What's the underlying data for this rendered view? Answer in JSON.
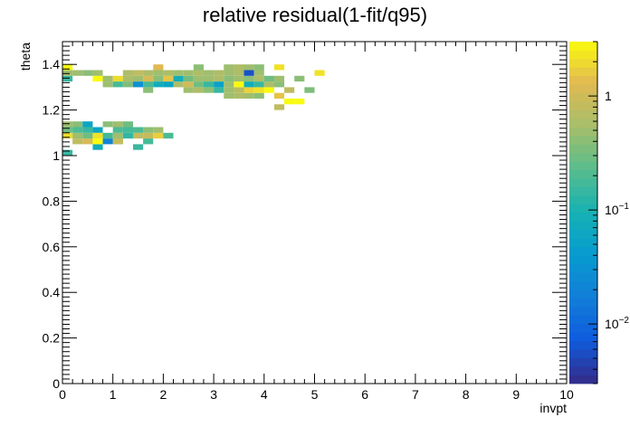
{
  "chart_data": {
    "type": "heatmap",
    "title": "relative residual(1-fit/q95)",
    "xlabel": "invpt",
    "ylabel": "theta",
    "xlim": [
      0,
      10
    ],
    "ylim": [
      0,
      1.5
    ],
    "x_ticks": [
      "0",
      "1",
      "2",
      "3",
      "4",
      "5",
      "6",
      "7",
      "8",
      "9",
      "10"
    ],
    "y_ticks": [
      "0",
      "0.2",
      "0.4",
      "0.6",
      "0.8",
      "1",
      "1.2",
      "1.4"
    ],
    "z_scale": "log",
    "z_range": [
      0.003,
      3
    ],
    "z_ticks": [
      {
        "value": 0.01,
        "base": "10",
        "exp": "−2"
      },
      {
        "value": 0.1,
        "base": "10",
        "exp": "−1"
      },
      {
        "value": 1,
        "base": "1",
        "exp": ""
      }
    ],
    "bin_size": [
      0.2,
      0.025
    ],
    "cells": [
      {
        "x": 0.0,
        "y": 1.0,
        "z": 0.15
      },
      {
        "x": 0.6,
        "y": 1.025,
        "z": 0.08
      },
      {
        "x": 1.0,
        "y": 1.05,
        "z": 0.18
      },
      {
        "x": 1.4,
        "y": 1.025,
        "z": 0.15
      },
      {
        "x": 1.6,
        "y": 1.05,
        "z": 0.18
      },
      {
        "x": 0.2,
        "y": 1.05,
        "z": 0.8
      },
      {
        "x": 0.4,
        "y": 1.05,
        "z": 1.1
      },
      {
        "x": 0.6,
        "y": 1.05,
        "z": 3
      },
      {
        "x": 0.8,
        "y": 1.05,
        "z": 0.02
      },
      {
        "x": 1.0,
        "y": 1.05,
        "z": 0.9
      },
      {
        "x": 0.0,
        "y": 1.075,
        "z": 2
      },
      {
        "x": 0.2,
        "y": 1.075,
        "z": 0.5
      },
      {
        "x": 0.4,
        "y": 1.075,
        "z": 0.3
      },
      {
        "x": 0.6,
        "y": 1.075,
        "z": 2.2
      },
      {
        "x": 0.8,
        "y": 1.075,
        "z": 0.18
      },
      {
        "x": 1.0,
        "y": 1.075,
        "z": 0.5
      },
      {
        "x": 1.2,
        "y": 1.075,
        "z": 0.14
      },
      {
        "x": 1.4,
        "y": 1.075,
        "z": 0.8
      },
      {
        "x": 1.6,
        "y": 1.075,
        "z": 0.9
      },
      {
        "x": 1.8,
        "y": 1.075,
        "z": 1.7
      },
      {
        "x": 2.0,
        "y": 1.075,
        "z": 0.2
      },
      {
        "x": 0.0,
        "y": 1.1,
        "z": 0.3
      },
      {
        "x": 0.2,
        "y": 1.1,
        "z": 0.2
      },
      {
        "x": 0.4,
        "y": 1.1,
        "z": 0.15
      },
      {
        "x": 0.6,
        "y": 1.1,
        "z": 0.06
      },
      {
        "x": 1.0,
        "y": 1.1,
        "z": 0.2
      },
      {
        "x": 1.2,
        "y": 1.1,
        "z": 0.18
      },
      {
        "x": 1.4,
        "y": 1.1,
        "z": 0.2
      },
      {
        "x": 1.6,
        "y": 1.1,
        "z": 0.4
      },
      {
        "x": 1.8,
        "y": 1.1,
        "z": 0.5
      },
      {
        "x": 0.0,
        "y": 1.125,
        "z": 0.5
      },
      {
        "x": 0.2,
        "y": 1.125,
        "z": 0.4
      },
      {
        "x": 0.4,
        "y": 1.125,
        "z": 0.06
      },
      {
        "x": 0.8,
        "y": 1.125,
        "z": 0.4
      },
      {
        "x": 1.0,
        "y": 1.125,
        "z": 0.5
      },
      {
        "x": 1.2,
        "y": 1.125,
        "z": 0.3
      },
      {
        "x": 4.2,
        "y": 1.2,
        "z": 0.8
      },
      {
        "x": 4.4,
        "y": 1.225,
        "z": 3
      },
      {
        "x": 4.6,
        "y": 1.225,
        "z": 3
      },
      {
        "x": 3.2,
        "y": 1.25,
        "z": 0.5
      },
      {
        "x": 3.4,
        "y": 1.25,
        "z": 0.6
      },
      {
        "x": 3.6,
        "y": 1.25,
        "z": 0.5
      },
      {
        "x": 3.8,
        "y": 1.25,
        "z": 0.4
      },
      {
        "x": 4.2,
        "y": 1.25,
        "z": 1.5
      },
      {
        "x": 1.6,
        "y": 1.275,
        "z": 0.4
      },
      {
        "x": 2.4,
        "y": 1.275,
        "z": 0.5
      },
      {
        "x": 2.6,
        "y": 1.275,
        "z": 0.6
      },
      {
        "x": 2.8,
        "y": 1.275,
        "z": 0.4
      },
      {
        "x": 3.0,
        "y": 1.275,
        "z": 0.15
      },
      {
        "x": 3.2,
        "y": 1.275,
        "z": 0.5
      },
      {
        "x": 3.4,
        "y": 1.275,
        "z": 0.7
      },
      {
        "x": 3.6,
        "y": 1.275,
        "z": 1.8
      },
      {
        "x": 3.8,
        "y": 1.275,
        "z": 2.2
      },
      {
        "x": 4.0,
        "y": 1.275,
        "z": 3
      },
      {
        "x": 4.4,
        "y": 1.275,
        "z": 0.8
      },
      {
        "x": 4.8,
        "y": 1.275,
        "z": 0.35
      },
      {
        "x": 0.8,
        "y": 1.3,
        "z": 0.5
      },
      {
        "x": 1.0,
        "y": 1.3,
        "z": 0.18
      },
      {
        "x": 1.2,
        "y": 1.3,
        "z": 0.35
      },
      {
        "x": 1.4,
        "y": 1.3,
        "z": 0.03
      },
      {
        "x": 1.6,
        "y": 1.3,
        "z": 0.18
      },
      {
        "x": 1.8,
        "y": 1.3,
        "z": 0.08
      },
      {
        "x": 2.0,
        "y": 1.3,
        "z": 0.06
      },
      {
        "x": 2.2,
        "y": 1.3,
        "z": 0.6
      },
      {
        "x": 2.4,
        "y": 1.3,
        "z": 1.0
      },
      {
        "x": 2.6,
        "y": 1.3,
        "z": 0.3
      },
      {
        "x": 2.8,
        "y": 1.3,
        "z": 0.15
      },
      {
        "x": 3.0,
        "y": 1.3,
        "z": 0.05
      },
      {
        "x": 3.2,
        "y": 1.3,
        "z": 0.5
      },
      {
        "x": 3.4,
        "y": 1.3,
        "z": 3
      },
      {
        "x": 3.6,
        "y": 1.3,
        "z": 0.08
      },
      {
        "x": 3.8,
        "y": 1.3,
        "z": 0.15
      },
      {
        "x": 4.0,
        "y": 1.3,
        "z": 0.6
      },
      {
        "x": 4.2,
        "y": 1.3,
        "z": 0.4
      },
      {
        "x": 0.0,
        "y": 1.325,
        "z": 0.15
      },
      {
        "x": 0.6,
        "y": 1.325,
        "z": 3
      },
      {
        "x": 0.8,
        "y": 1.325,
        "z": 0.5
      },
      {
        "x": 1.0,
        "y": 1.325,
        "z": 2
      },
      {
        "x": 1.2,
        "y": 1.325,
        "z": 0.6
      },
      {
        "x": 1.4,
        "y": 1.325,
        "z": 0.5
      },
      {
        "x": 1.6,
        "y": 1.325,
        "z": 1.1
      },
      {
        "x": 1.8,
        "y": 1.325,
        "z": 0.4
      },
      {
        "x": 2.0,
        "y": 1.325,
        "z": 1.5
      },
      {
        "x": 2.2,
        "y": 1.325,
        "z": 0.08
      },
      {
        "x": 2.4,
        "y": 1.325,
        "z": 0.3
      },
      {
        "x": 2.6,
        "y": 1.325,
        "z": 0.5
      },
      {
        "x": 2.8,
        "y": 1.325,
        "z": 0.5
      },
      {
        "x": 3.0,
        "y": 1.325,
        "z": 0.6
      },
      {
        "x": 3.2,
        "y": 1.325,
        "z": 0.4
      },
      {
        "x": 3.4,
        "y": 1.325,
        "z": 0.5
      },
      {
        "x": 3.6,
        "y": 1.325,
        "z": 0.4
      },
      {
        "x": 3.8,
        "y": 1.325,
        "z": 0.6
      },
      {
        "x": 4.0,
        "y": 1.325,
        "z": 0.3
      },
      {
        "x": 4.2,
        "y": 1.325,
        "z": 0.5
      },
      {
        "x": 4.6,
        "y": 1.325,
        "z": 0.4
      },
      {
        "x": 0.0,
        "y": 1.35,
        "z": 0.5
      },
      {
        "x": 0.2,
        "y": 1.35,
        "z": 0.5
      },
      {
        "x": 0.4,
        "y": 1.35,
        "z": 0.4
      },
      {
        "x": 0.6,
        "y": 1.35,
        "z": 0.5
      },
      {
        "x": 1.2,
        "y": 1.35,
        "z": 0.6
      },
      {
        "x": 1.4,
        "y": 1.35,
        "z": 0.8
      },
      {
        "x": 1.6,
        "y": 1.35,
        "z": 0.6
      },
      {
        "x": 1.8,
        "y": 1.35,
        "z": 0.5
      },
      {
        "x": 2.0,
        "y": 1.35,
        "z": 0.6
      },
      {
        "x": 2.2,
        "y": 1.35,
        "z": 0.5
      },
      {
        "x": 2.4,
        "y": 1.35,
        "z": 0.5
      },
      {
        "x": 2.6,
        "y": 1.35,
        "z": 0.6
      },
      {
        "x": 2.8,
        "y": 1.35,
        "z": 0.5
      },
      {
        "x": 3.0,
        "y": 1.35,
        "z": 0.6
      },
      {
        "x": 3.2,
        "y": 1.35,
        "z": 0.5
      },
      {
        "x": 3.4,
        "y": 1.35,
        "z": 0.6
      },
      {
        "x": 3.6,
        "y": 1.35,
        "z": 0.006
      },
      {
        "x": 3.8,
        "y": 1.35,
        "z": 0.5
      },
      {
        "x": 5.0,
        "y": 1.35,
        "z": 2.2
      },
      {
        "x": 0.0,
        "y": 1.375,
        "z": 3
      },
      {
        "x": 1.8,
        "y": 1.375,
        "z": 1.3
      },
      {
        "x": 2.6,
        "y": 1.375,
        "z": 0.4
      },
      {
        "x": 3.2,
        "y": 1.375,
        "z": 0.5
      },
      {
        "x": 3.4,
        "y": 1.375,
        "z": 0.6
      },
      {
        "x": 3.6,
        "y": 1.375,
        "z": 0.5
      },
      {
        "x": 3.8,
        "y": 1.375,
        "z": 0.4
      },
      {
        "x": 4.2,
        "y": 1.375,
        "z": 2.2
      }
    ]
  }
}
